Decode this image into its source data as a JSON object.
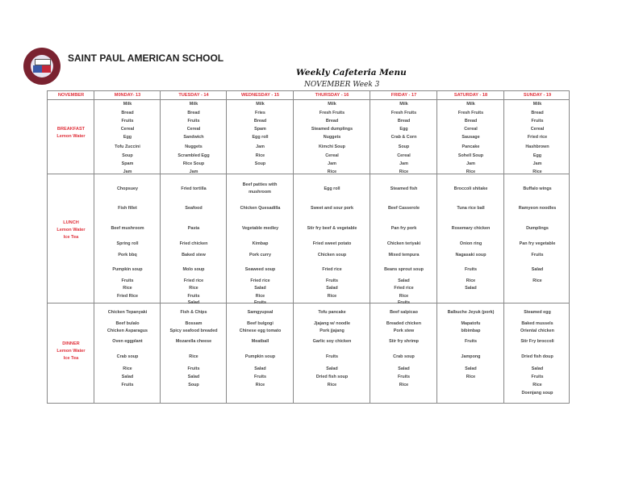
{
  "header": {
    "school_name": "SAINT PAUL AMERICAN SCHOOL",
    "title": "Weekly Cafeteria Menu",
    "subtitle": "NOVEMBER Week 3",
    "logo_text": "SAINT PAUL AMERICAN SCHOOL"
  },
  "table": {
    "corner_label": "NOVEMBER",
    "days": [
      "M0NDAY- 13",
      "TUESDAY - 14",
      "WEDNESDAY - 15",
      "THURSDAY - 16",
      "FRIDAY - 17",
      "SATURDAY - 18",
      "SUNDAY - 19"
    ],
    "meals": [
      {
        "name": "BREAKFAST",
        "drinks": [
          "Lemon Water"
        ],
        "items": [
          [
            "Milk",
            "Bread",
            "Fruits",
            "Cereal",
            "Egg",
            "Tofu Zuccini",
            "Soup",
            "Spam",
            "Jam"
          ],
          [
            "Milk",
            "Bread",
            "Fruits",
            "Cereal",
            "Sandwich",
            "Nuggets",
            "Scrambled Egg",
            "Rice Soup",
            "Jam"
          ],
          [
            "Milk",
            "Fries",
            "Bread",
            "Spam",
            "Egg roll",
            "Jam",
            "Rice",
            "Soup",
            ""
          ],
          [
            "Milk",
            "Fresh Fruits",
            "Bread",
            "Steamed  dumplings",
            "Nuggets",
            "Kimchi Soup",
            "Cereal",
            "Jam",
            "Rice"
          ],
          [
            "Milk",
            "Fresh Fruits",
            "Bread",
            "Egg",
            "Crab & Corn",
            "Soup",
            "Cereal",
            "Jam",
            "Rice"
          ],
          [
            "Milk",
            "Fresh Fruits",
            "Bread",
            "Cereal",
            "Sausage",
            "Pancake",
            "Sohell Soup",
            "Jam",
            "Rice"
          ],
          [
            "Milk",
            "Bread",
            "Fruits",
            "Cereal",
            "Fried rice",
            "Hashbrown",
            "Egg",
            "Jam",
            "Rice"
          ]
        ]
      },
      {
        "name": "LUNCH",
        "drinks": [
          "Lemon Water",
          "Ice Tea"
        ],
        "items": [
          [
            "Chopsuey",
            "Fish fillet",
            "Beef mushroom",
            "Spring roll",
            "Pork bbq",
            "Pumpkin soup",
            "Fruits",
            "Rice",
            "Fried Rice",
            ""
          ],
          [
            "Fried tortilla",
            "Seafood",
            "Pasta",
            "Fried chicken",
            "Baked stew",
            "Molo soup",
            "Fried rice",
            "Rice",
            "Fruits",
            "Salad"
          ],
          [
            "Beef patties with mushroom",
            "Chicken Quesadilla",
            "Vegetable medley",
            "Kimbap",
            "Pork curry",
            "Seaweed soup",
            "Fried rice",
            "Salad",
            "Rice",
            "Fruits"
          ],
          [
            "Egg roll",
            "Sweet and sour pork",
            "Stir fry beef & vegetable",
            "Fried sweet potato",
            "Chicken soup",
            "Fried rice",
            "Fruits",
            "Salad",
            "Rice",
            ""
          ],
          [
            "Steamed fish",
            "Beef Casserole",
            "Pan fry pork",
            "Chicken teriyaki",
            "Mixed tempura",
            "Beans sprout soup",
            "Salad",
            "Fried rice",
            "Rice",
            "Fruits"
          ],
          [
            "Broccoli shitake",
            "Tuna rice ball",
            "Rosemary chicken",
            "Onion ring",
            "Nagasaki soup",
            "Fruits",
            "Rice",
            "Salad",
            "",
            ""
          ],
          [
            "Buffalo wings",
            "Ramyeon noodles",
            "Dumplings",
            "Pan fry vegetable",
            "Fruits",
            "Salad",
            "Rice",
            "",
            "",
            ""
          ]
        ]
      },
      {
        "name": "DINNER",
        "drinks": [
          "Lemon Water",
          "Ice Tea"
        ],
        "items": [
          [
            "Chicken Tepanyaki",
            "Beef bulalo",
            "Chicken Asparagus",
            "Oven eggplant",
            "Crab soup",
            "Rice",
            "Salad",
            "Fruits",
            ""
          ],
          [
            "Fish & Chips",
            "Bossam",
            "Spicy seafood breaded",
            "Mozarella cheese",
            "Rice",
            "Fruits",
            "Salad",
            "Soup",
            ""
          ],
          [
            "Samgyupsal",
            "Beef bulgogi",
            "Chinese egg tomato",
            "Meatball",
            "Pumpkin soup",
            "Salad",
            "Fruits",
            "Rice",
            ""
          ],
          [
            "Tofu pancake",
            "Jjajang w/ noodle",
            "Pork jjajang",
            "Garlic soy chicken",
            "Fruits",
            "Salad",
            "Dried fish soup",
            "Rice",
            ""
          ],
          [
            "Beef salpicao",
            "Breaded chicken",
            "Pork stew",
            "Stir fry shrimp",
            "Crab soup",
            "Salad",
            "Fruits",
            "Rice",
            ""
          ],
          [
            "Balbuche Jeyuk (pork)",
            "Mapatofu",
            "bibimbap",
            "Fruits",
            "Jampong",
            "Salad",
            "Rice",
            "",
            ""
          ],
          [
            "Steamed egg",
            "Baked mussels",
            "Oriental chicken",
            "Stir Fry broccoli",
            "Dried fish doup",
            "Salad",
            "Fruits",
            "Rice",
            "Doenjang soup"
          ]
        ]
      }
    ]
  },
  "colors": {
    "accent": "#e0303a",
    "text": "#444444",
    "border": "#888888"
  }
}
